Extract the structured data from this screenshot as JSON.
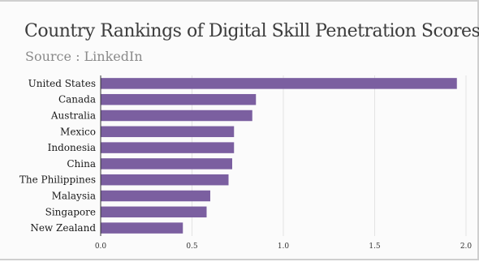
{
  "chart_data": {
    "type": "bar",
    "orientation": "horizontal",
    "title": "Country Rankings of Digital Skill Penetration Scores",
    "subtitle": "Source : LinkedIn",
    "categories": [
      "United States",
      "Canada",
      "Australia",
      "Mexico",
      "Indonesia",
      "China",
      "The Philippines",
      "Malaysia",
      "Singapore",
      "New Zealand"
    ],
    "values": [
      1.95,
      0.85,
      0.83,
      0.73,
      0.73,
      0.72,
      0.7,
      0.6,
      0.58,
      0.45
    ],
    "x_ticks": [
      "0.0",
      "0.5",
      "1.0",
      "1.5",
      "2.0"
    ],
    "x_tick_values": [
      0,
      0.5,
      1.0,
      1.5,
      2.0
    ],
    "xlim": [
      0,
      2.0
    ],
    "grid": true,
    "legend": "none",
    "bar_color": "#7b5fa0",
    "grid_color": "#e3e3e3",
    "axis_color": "#333333"
  }
}
